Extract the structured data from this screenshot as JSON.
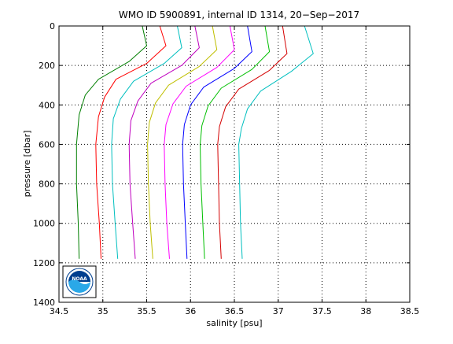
{
  "chart_data": {
    "type": "line",
    "title": "WMO ID 5900891, internal ID 1314, 20−Sep−2017",
    "xlabel": "salinity [psu]",
    "ylabel": "pressure [dbar]",
    "xlim": [
      34.5,
      38.5
    ],
    "ylim": [
      0,
      1400
    ],
    "y_reversed": true,
    "grid": true,
    "x_ticks": [
      "34.5",
      "35",
      "35.5",
      "36",
      "36.5",
      "37",
      "37.5",
      "38",
      "38.5"
    ],
    "y_ticks": [
      "0",
      "200",
      "400",
      "600",
      "800",
      "1000",
      "1200",
      "1400"
    ],
    "logo": {
      "text": "NOAA",
      "colors": {
        "top": "#003f8f",
        "bottom": "#2aa8e8",
        "ring": "#ffffff"
      }
    },
    "series": [
      {
        "color": "#007f00",
        "points": [
          [
            35.45,
            0
          ],
          [
            35.5,
            100
          ],
          [
            35.3,
            180
          ],
          [
            34.95,
            270
          ],
          [
            34.8,
            350
          ],
          [
            34.73,
            450
          ],
          [
            34.7,
            600
          ],
          [
            34.7,
            800
          ],
          [
            34.72,
            1000
          ],
          [
            34.73,
            1180
          ]
        ]
      },
      {
        "color": "#ff0000",
        "points": [
          [
            35.65,
            0
          ],
          [
            35.72,
            100
          ],
          [
            35.5,
            190
          ],
          [
            35.15,
            270
          ],
          [
            35.02,
            360
          ],
          [
            34.95,
            460
          ],
          [
            34.92,
            600
          ],
          [
            34.93,
            800
          ],
          [
            34.96,
            1000
          ],
          [
            34.98,
            1180
          ]
        ]
      },
      {
        "color": "#00bfbf",
        "points": [
          [
            35.85,
            0
          ],
          [
            35.9,
            110
          ],
          [
            35.7,
            190
          ],
          [
            35.35,
            280
          ],
          [
            35.2,
            370
          ],
          [
            35.12,
            470
          ],
          [
            35.1,
            600
          ],
          [
            35.11,
            800
          ],
          [
            35.14,
            1000
          ],
          [
            35.17,
            1180
          ]
        ]
      },
      {
        "color": "#bf00bf",
        "points": [
          [
            36.05,
            0
          ],
          [
            36.1,
            110
          ],
          [
            35.9,
            200
          ],
          [
            35.55,
            290
          ],
          [
            35.4,
            380
          ],
          [
            35.32,
            480
          ],
          [
            35.3,
            600
          ],
          [
            35.31,
            800
          ],
          [
            35.34,
            1000
          ],
          [
            35.37,
            1180
          ]
        ]
      },
      {
        "color": "#bfbf00",
        "points": [
          [
            36.25,
            0
          ],
          [
            36.3,
            120
          ],
          [
            36.1,
            205
          ],
          [
            35.75,
            300
          ],
          [
            35.6,
            390
          ],
          [
            35.53,
            490
          ],
          [
            35.51,
            600
          ],
          [
            35.52,
            800
          ],
          [
            35.54,
            1000
          ],
          [
            35.57,
            1180
          ]
        ]
      },
      {
        "color": "#ff00ff",
        "points": [
          [
            36.45,
            0
          ],
          [
            36.5,
            120
          ],
          [
            36.3,
            210
          ],
          [
            35.95,
            305
          ],
          [
            35.8,
            395
          ],
          [
            35.72,
            500
          ],
          [
            35.7,
            600
          ],
          [
            35.71,
            800
          ],
          [
            35.73,
            1000
          ],
          [
            35.76,
            1180
          ]
        ]
      },
      {
        "color": "#0000ff",
        "points": [
          [
            36.65,
            0
          ],
          [
            36.7,
            130
          ],
          [
            36.5,
            215
          ],
          [
            36.15,
            310
          ],
          [
            36,
            400
          ],
          [
            35.93,
            500
          ],
          [
            35.91,
            600
          ],
          [
            35.92,
            800
          ],
          [
            35.94,
            1000
          ],
          [
            35.96,
            1180
          ]
        ]
      },
      {
        "color": "#00bf00",
        "points": [
          [
            36.85,
            0
          ],
          [
            36.9,
            130
          ],
          [
            36.7,
            220
          ],
          [
            36.35,
            315
          ],
          [
            36.2,
            405
          ],
          [
            36.13,
            505
          ],
          [
            36.11,
            600
          ],
          [
            36.12,
            800
          ],
          [
            36.14,
            1000
          ],
          [
            36.16,
            1180
          ]
        ]
      },
      {
        "color": "#d40000",
        "points": [
          [
            37.05,
            0
          ],
          [
            37.1,
            140
          ],
          [
            36.9,
            225
          ],
          [
            36.55,
            320
          ],
          [
            36.4,
            410
          ],
          [
            36.33,
            510
          ],
          [
            36.31,
            600
          ],
          [
            36.32,
            800
          ],
          [
            36.33,
            1000
          ],
          [
            36.35,
            1180
          ]
        ]
      },
      {
        "color": "#00bfbf",
        "points": [
          [
            37.3,
            0
          ],
          [
            37.4,
            140
          ],
          [
            37.15,
            230
          ],
          [
            36.8,
            330
          ],
          [
            36.65,
            420
          ],
          [
            36.58,
            520
          ],
          [
            36.55,
            600
          ],
          [
            36.56,
            800
          ],
          [
            36.57,
            1000
          ],
          [
            36.59,
            1180
          ]
        ]
      }
    ]
  }
}
